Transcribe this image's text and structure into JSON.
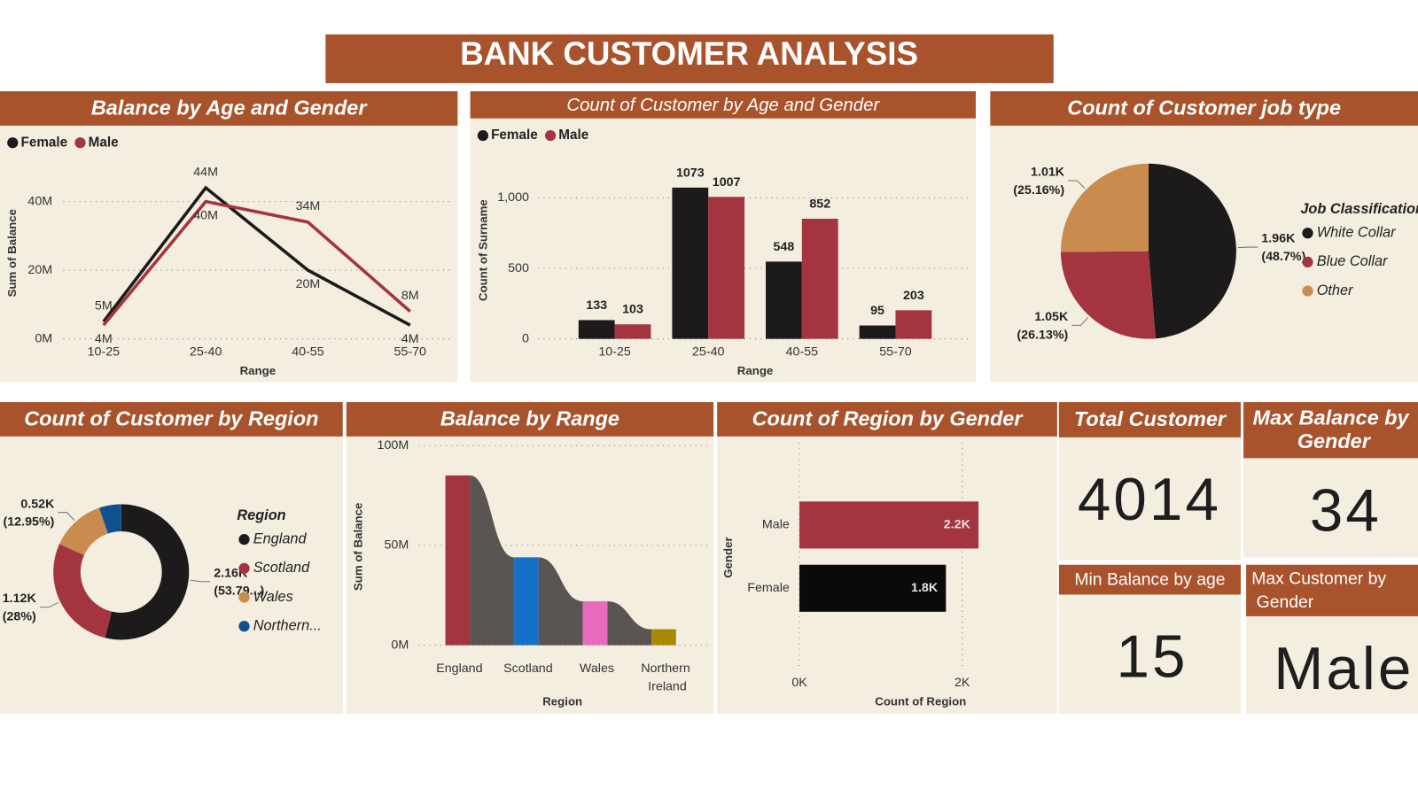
{
  "title": "BANK CUSTOMER ANALYSIS",
  "chart_data": [
    {
      "type": "line",
      "title": "Balance by Age and Gender",
      "x_label": "Range",
      "y_label": "Sum of Balance",
      "categories": [
        "10-25",
        "25-40",
        "40-55",
        "55-70"
      ],
      "series": [
        {
          "name": "Female",
          "color": "#1c1a1b",
          "values": [
            5,
            44,
            20,
            4
          ],
          "value_labels": [
            "5M",
            "44M",
            "20M",
            "4M"
          ]
        },
        {
          "name": "Male",
          "color": "#a4343f",
          "values": [
            4,
            40,
            34,
            8
          ],
          "value_labels": [
            "4M",
            "40M",
            "34M",
            "8M"
          ]
        }
      ],
      "ylim": [
        0,
        50
      ],
      "yticks": [
        {
          "value": 0,
          "label": "0M"
        },
        {
          "value": 20,
          "label": "20M"
        },
        {
          "value": 40,
          "label": "40M"
        }
      ],
      "grid": true,
      "legend": "top-left"
    },
    {
      "type": "bar",
      "title": "Count of Customer by Age and Gender",
      "x_label": "Range",
      "y_label": "Count of Surname",
      "categories": [
        "10-25",
        "25-40",
        "40-55",
        "55-70"
      ],
      "series": [
        {
          "name": "Female",
          "color": "#1c1a1b",
          "values": [
            133,
            1073,
            548,
            95
          ]
        },
        {
          "name": "Male",
          "color": "#a4343f",
          "values": [
            103,
            1007,
            852,
            203
          ]
        }
      ],
      "ylim": [
        0,
        1200
      ],
      "yticks": [
        0,
        500,
        {
          "value": 1000,
          "label": "1,000"
        }
      ],
      "grid": true,
      "legend": "top-left"
    },
    {
      "type": "pie",
      "title": "Count of Customer job type",
      "legend_title": "Job Classification",
      "categories": [
        "White Collar",
        "Blue Collar",
        "Other"
      ],
      "colors": [
        "#1c1a1b",
        "#a4343f",
        "#c98b4e"
      ],
      "values": [
        1.96,
        1.05,
        1.01
      ],
      "value_labels": [
        "1.96K",
        "1.05K",
        "1.01K"
      ],
      "percents": [
        48.7,
        26.13,
        25.16
      ],
      "percent_labels": [
        "(48.7%)",
        "(26.13%)",
        "(25.16%)"
      ],
      "legend": "right"
    },
    {
      "type": "donut",
      "title": "Count of Customer by Region",
      "legend_title": "Region",
      "categories": [
        "England",
        "Scotland",
        "Wales",
        "Northern..."
      ],
      "colors": [
        "#1c1a1b",
        "#a4343f",
        "#c98b4e",
        "#11508f"
      ],
      "values": [
        2.16,
        1.12,
        0.52,
        0.21
      ],
      "value_labels": [
        "2.16K",
        "1.12K",
        "0.52K",
        null
      ],
      "percents": [
        53.79,
        28,
        12.95,
        5.26
      ],
      "percent_labels": [
        "(53.79...)",
        "(28%)",
        "(12.95%)",
        null
      ],
      "legend": "right"
    },
    {
      "type": "ribbon",
      "title": "Balance by Range",
      "x_label": "Region",
      "y_label": "Sum of Balance",
      "categories": [
        "England",
        "Scotland",
        "Wales",
        "Northern Ireland"
      ],
      "colors": [
        "#a4343f",
        "#1470c8",
        "#e86bbf",
        "#a88a00"
      ],
      "ribbon_color": "#5a5552",
      "values": [
        85,
        44,
        22,
        8
      ],
      "ylim": [
        0,
        100
      ],
      "yticks": [
        {
          "value": 0,
          "label": "0M"
        },
        {
          "value": 50,
          "label": "50M"
        },
        {
          "value": 100,
          "label": "100M"
        }
      ],
      "grid": true
    },
    {
      "type": "hbar",
      "title": "Count of Region by Gender",
      "x_label": "Count of Region",
      "y_label": "Gender",
      "categories": [
        "Male",
        "Female"
      ],
      "colors": [
        "#a4343f",
        "#0a0a0a"
      ],
      "values": [
        2.2,
        1.8
      ],
      "value_labels": [
        "2.2K",
        "1.8K"
      ],
      "xlim": [
        0,
        3
      ],
      "xticks": [
        {
          "value": 0,
          "label": "0K"
        },
        {
          "value": 2,
          "label": "2K"
        }
      ],
      "grid": true
    }
  ],
  "cards": [
    {
      "title": "Total Customer",
      "value": 4014
    },
    {
      "title": "Max Balance by Gender",
      "value": 34
    },
    {
      "title": "Min Balance by age",
      "value": 15
    },
    {
      "title": "Max Customer by Gender",
      "value": "Male"
    }
  ]
}
